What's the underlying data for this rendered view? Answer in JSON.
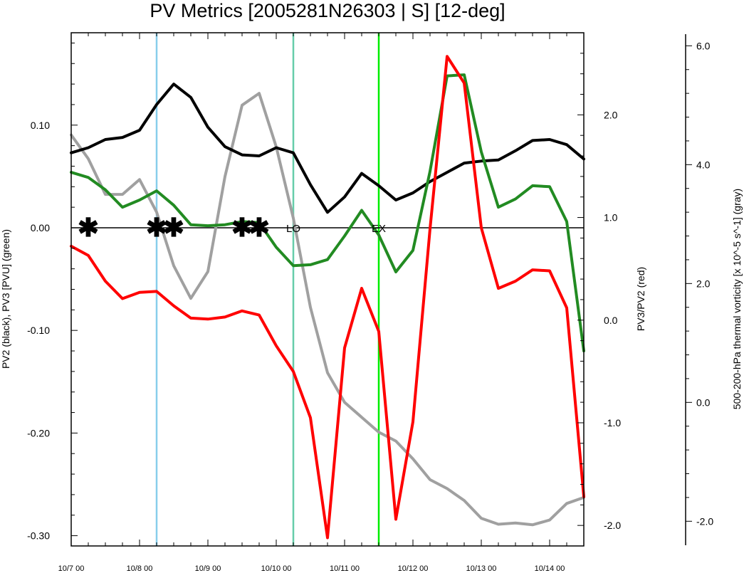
{
  "title": "PV Metrics [2005281N26303 | S] [12-deg]",
  "chart_data": {
    "type": "line",
    "x_axis": {
      "tick_labels": [
        "10/7 00",
        "10/8 00",
        "10/9 00",
        "10/10 00",
        "10/11 00",
        "10/12 00",
        "10/13 00",
        "10/14 00"
      ],
      "tick_days": [
        0,
        1,
        2,
        3,
        4,
        5,
        6,
        7
      ],
      "range_days": [
        0,
        7.5
      ]
    },
    "left_axis": {
      "label": "PV2 (black), PV3 [PVU] (green)",
      "range": [
        -0.31,
        0.19
      ],
      "tick_values": [
        -0.3,
        -0.2,
        -0.1,
        0.0,
        0.1
      ],
      "tick_labels": [
        "-0.30",
        "-0.20",
        "-0.10",
        "0.00",
        "0.10"
      ]
    },
    "right_axis": {
      "label": "PV3/PV2 (red)",
      "range": [
        -2.2,
        2.8
      ],
      "tick_values": [
        -2.0,
        -1.0,
        0.0,
        1.0,
        2.0
      ],
      "tick_labels": [
        "-2.0",
        "-1.0",
        "0.0",
        "1.0",
        "2.0"
      ]
    },
    "far_right_axis": {
      "label": "500-200-hPa thermal vorticity [x 10^-5 s^-1] (gray)",
      "range": [
        -2.2,
        6.1
      ],
      "tick_values": [
        -2.0,
        0.0,
        2.0,
        4.0,
        6.0
      ],
      "tick_labels": [
        "-2.0",
        "0.0",
        "2.0",
        "4.0",
        "6.0"
      ]
    },
    "vertical_lines": [
      {
        "day": 1.25,
        "color": "#87ceeb"
      },
      {
        "day": 3.25,
        "color": "#66cdaa"
      },
      {
        "day": 4.5,
        "color": "#00ee00"
      }
    ],
    "annotations": [
      {
        "text": "LO",
        "day": 3.25,
        "value": 0.0
      },
      {
        "text": "EX",
        "day": 4.5,
        "value": 0.0
      }
    ],
    "star_days": [
      0.25,
      1.25,
      1.5,
      2.5,
      2.75
    ],
    "star_symbol": "✱",
    "series": [
      {
        "axis": "left",
        "color": "#000000",
        "x": [
          0,
          0.25,
          0.5,
          0.75,
          1.0,
          1.25,
          1.5,
          1.75,
          2.0,
          2.25,
          2.5,
          2.75,
          3.0,
          3.25,
          3.5,
          3.75,
          4.0,
          4.25,
          4.5,
          4.75,
          5.0,
          5.25,
          5.5,
          5.75,
          6.0,
          6.25,
          6.5,
          6.75,
          7.0,
          7.25,
          7.5
        ],
        "values": [
          0.073,
          0.078,
          0.086,
          0.088,
          0.095,
          0.12,
          0.14,
          0.127,
          0.098,
          0.079,
          0.071,
          0.07,
          0.078,
          0.073,
          0.042,
          0.015,
          0.03,
          0.053,
          0.041,
          0.027,
          0.034,
          0.045,
          0.054,
          0.063,
          0.065,
          0.066,
          0.075,
          0.085,
          0.086,
          0.081,
          0.067
        ]
      },
      {
        "axis": "left",
        "color": "#228b22",
        "x": [
          0,
          0.25,
          0.5,
          0.75,
          1.0,
          1.25,
          1.5,
          1.75,
          2.0,
          2.25,
          2.5,
          2.75,
          3.0,
          3.25,
          3.5,
          3.75,
          4.0,
          4.25,
          4.5,
          4.75,
          5.0,
          5.25,
          5.5,
          5.75,
          6.0,
          6.25,
          6.5,
          6.75,
          7.0,
          7.25,
          7.5
        ],
        "values": [
          0.054,
          0.049,
          0.037,
          0.02,
          0.027,
          0.036,
          0.022,
          0.003,
          0.002,
          0.003,
          0.006,
          0.005,
          -0.019,
          -0.037,
          -0.036,
          -0.031,
          -0.008,
          0.017,
          -0.007,
          -0.043,
          -0.022,
          0.055,
          0.148,
          0.149,
          0.074,
          0.02,
          0.028,
          0.041,
          0.04,
          0.006,
          -0.12
        ]
      },
      {
        "axis": "right",
        "color": "#ff0000",
        "x": [
          0,
          0.25,
          0.5,
          0.75,
          1.0,
          1.25,
          1.5,
          1.75,
          2.0,
          2.25,
          2.5,
          2.75,
          3.0,
          3.25,
          3.5,
          3.75,
          4.0,
          4.25,
          4.5,
          4.75,
          5.0,
          5.25,
          5.5,
          5.75,
          6.0,
          6.25,
          6.5,
          6.75,
          7.0,
          7.25,
          7.5
        ],
        "values": [
          0.72,
          0.63,
          0.38,
          0.21,
          0.27,
          0.28,
          0.14,
          0.02,
          0.01,
          0.03,
          0.09,
          0.05,
          -0.25,
          -0.5,
          -0.95,
          -2.12,
          -0.27,
          0.31,
          -0.11,
          -1.94,
          -0.99,
          0.89,
          2.57,
          2.31,
          0.9,
          0.31,
          0.38,
          0.49,
          0.48,
          0.12,
          -1.72
        ]
      },
      {
        "axis": "far_right",
        "color": "#a0a0a0",
        "x": [
          0,
          0.25,
          0.5,
          0.75,
          1.0,
          1.25,
          1.5,
          1.75,
          2.0,
          2.25,
          2.5,
          2.75,
          3.0,
          3.25,
          3.5,
          3.75,
          4.0,
          4.25,
          4.5,
          4.75,
          5.0,
          5.25,
          5.5,
          5.75,
          6.0,
          6.25,
          6.5,
          6.75,
          7.0,
          7.25,
          7.5
        ],
        "values": [
          4.5,
          4.1,
          3.5,
          3.5,
          3.75,
          3.2,
          2.3,
          1.75,
          2.2,
          3.8,
          5.0,
          5.2,
          4.3,
          3.1,
          1.6,
          0.5,
          0.0,
          -0.25,
          -0.5,
          -0.65,
          -0.95,
          -1.3,
          -1.45,
          -1.65,
          -1.95,
          -2.05,
          -2.03,
          -2.06,
          -1.98,
          -1.7,
          -1.6
        ]
      }
    ]
  }
}
